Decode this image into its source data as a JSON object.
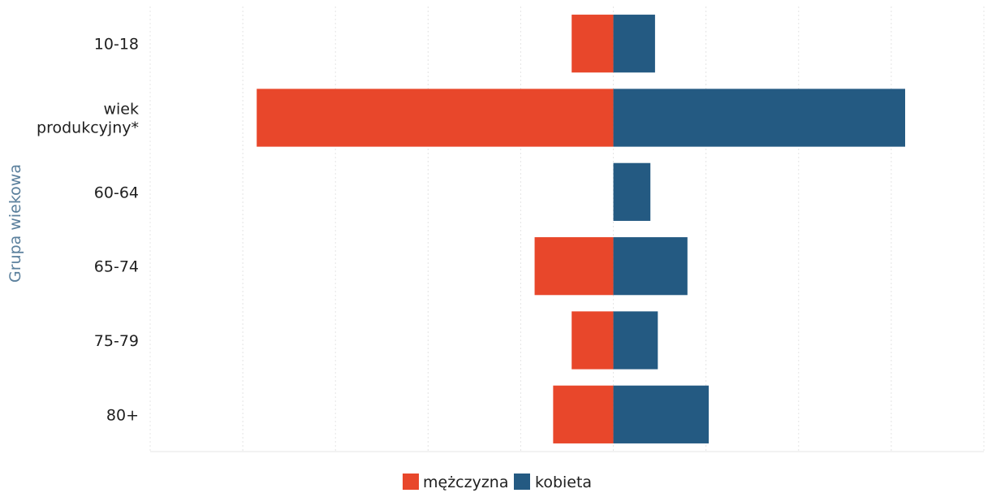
{
  "chart_data": {
    "type": "bar",
    "orientation": "horizontal",
    "stacked": "diverging",
    "categories": [
      "10-18",
      "wiek produkcyjny*",
      "60-64",
      "65-74",
      "75-79",
      "80+"
    ],
    "category_lines": [
      [
        "10-18"
      ],
      [
        "wiek",
        "produkcyjny*"
      ],
      [
        "60-64"
      ],
      [
        "65-74"
      ],
      [
        "75-79"
      ],
      [
        "80+"
      ]
    ],
    "series": [
      {
        "name": "mężczyzna",
        "color": "#e8472b",
        "values": [
          -4.5,
          -38.5,
          0,
          -8.5,
          -4.5,
          -6.5
        ]
      },
      {
        "name": "kobieta",
        "color": "#245a82",
        "values": [
          4.5,
          31.5,
          4.0,
          8.0,
          4.8,
          10.3
        ]
      }
    ],
    "ylabel": "Grupa wiekowa",
    "xlabel": "",
    "xlim": [
      -50,
      40
    ],
    "grid": true,
    "legend_position": "bottom-center"
  }
}
